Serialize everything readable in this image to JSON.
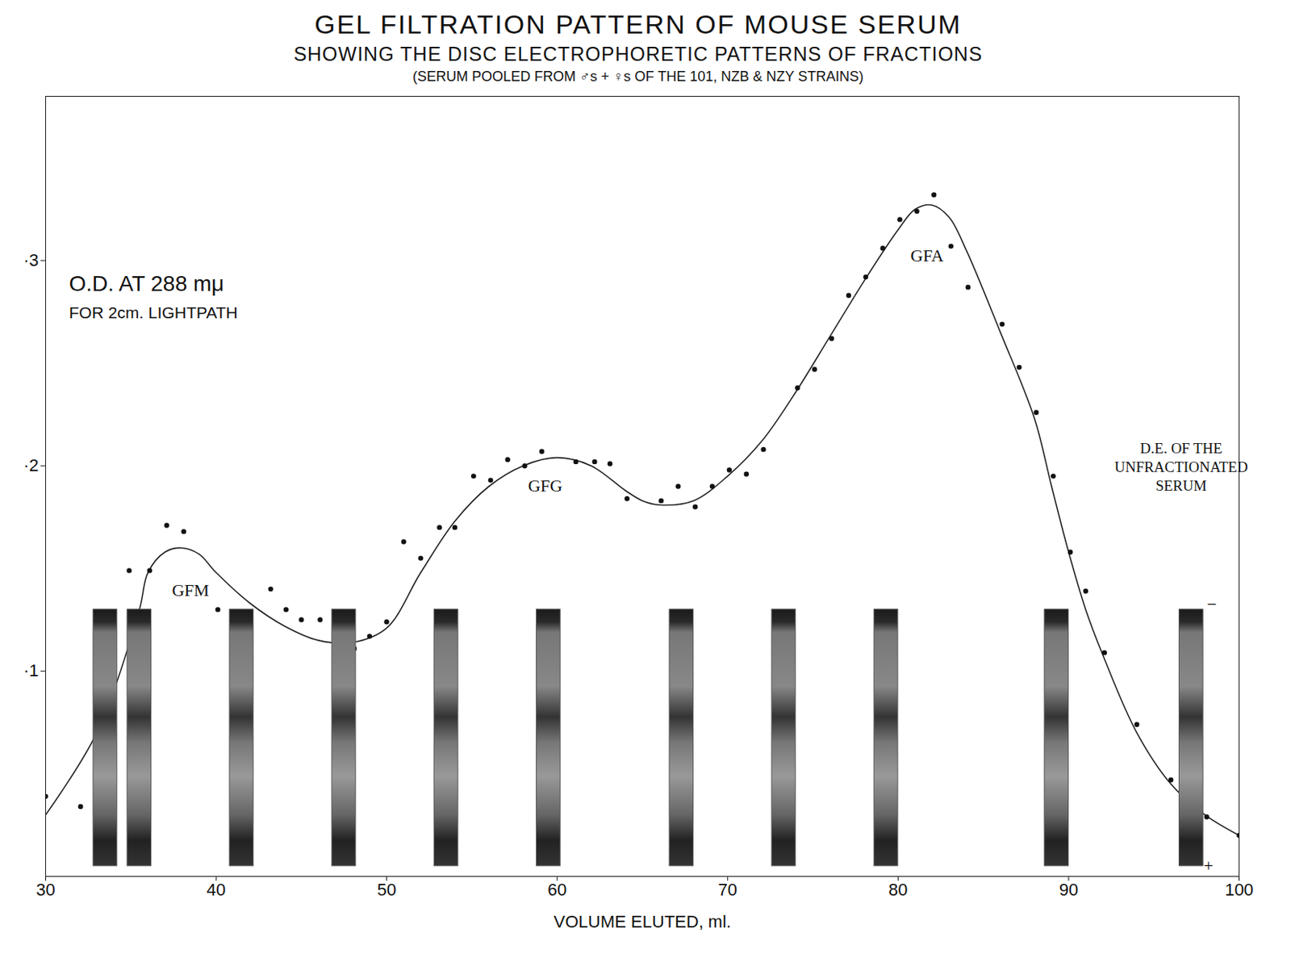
{
  "chart_data": {
    "type": "line",
    "title": "GEL FILTRATION PATTERN OF MOUSE SERUM",
    "subtitle": "SHOWING THE DISC ELECTROPHORETIC PATTERNS OF FRACTIONS",
    "caption": "(SERUM POOLED FROM ♂s + ♀s OF THE 101, NZB & NZY STRAINS)",
    "x_label": "VOLUME ELUTED, ml.",
    "y_label": [
      "O.D. AT 288 mμ",
      "FOR 2cm. LIGHTPATH"
    ],
    "xlim": [
      30,
      100
    ],
    "xticks": [
      30,
      40,
      50,
      60,
      70,
      80,
      90,
      100
    ],
    "ylim": [
      0,
      0.38
    ],
    "yticks": [
      {
        "value": 0.1,
        "label": "·1"
      },
      {
        "value": 0.2,
        "label": "·2"
      },
      {
        "value": 0.3,
        "label": "·3"
      }
    ],
    "grid": false,
    "series": [
      {
        "type": "line",
        "color": "#222222",
        "line_style": "solid",
        "x": [
          30,
          33,
          35.5,
          36,
          37,
          38,
          39,
          40,
          42,
          44,
          46,
          48,
          50,
          52,
          54,
          56,
          58,
          60,
          62,
          64,
          65,
          66,
          68,
          70,
          72,
          74,
          76,
          78,
          80,
          81,
          82,
          83,
          84,
          86,
          88,
          89,
          90,
          91,
          92,
          94,
          96,
          98,
          100
        ],
        "values": [
          0.03,
          0.07,
          0.13,
          0.148,
          0.158,
          0.16,
          0.157,
          0.148,
          0.133,
          0.122,
          0.115,
          0.114,
          0.121,
          0.148,
          0.173,
          0.19,
          0.2,
          0.204,
          0.2,
          0.188,
          0.183,
          0.181,
          0.183,
          0.195,
          0.212,
          0.236,
          0.263,
          0.29,
          0.315,
          0.325,
          0.327,
          0.321,
          0.305,
          0.265,
          0.223,
          0.19,
          0.158,
          0.13,
          0.108,
          0.07,
          0.045,
          0.03,
          0.02
        ]
      },
      {
        "type": "scatter",
        "color": "#111111",
        "marker": "circle",
        "x": [
          30,
          32.05,
          34.9,
          36.1,
          37.1,
          38.1,
          40.1,
          43.2,
          44.1,
          45.0,
          46.1,
          48.1,
          49.0,
          50.0,
          51.0,
          52.0,
          53.1,
          54.0,
          55.1,
          56.1,
          57.1,
          58.1,
          59.1,
          61.1,
          62.2,
          63.1,
          64.1,
          66.1,
          67.1,
          68.1,
          69.1,
          70.1,
          71.1,
          72.1,
          74.1,
          75.1,
          76.1,
          77.1,
          78.1,
          79.1,
          80.1,
          81.1,
          82.1,
          83.1,
          84.1,
          86.1,
          87.1,
          88.1,
          89.1,
          90.1,
          91.0,
          92.1,
          94.0,
          96.0,
          98.1,
          100
        ],
        "values": [
          0.039,
          0.034,
          0.149,
          0.149,
          0.171,
          0.168,
          0.13,
          0.14,
          0.13,
          0.125,
          0.125,
          0.111,
          0.117,
          0.124,
          0.163,
          0.155,
          0.17,
          0.17,
          0.195,
          0.193,
          0.203,
          0.2,
          0.207,
          0.202,
          0.202,
          0.201,
          0.184,
          0.183,
          0.19,
          0.18,
          0.19,
          0.198,
          0.196,
          0.208,
          0.238,
          0.247,
          0.262,
          0.283,
          0.292,
          0.306,
          0.32,
          0.324,
          0.332,
          0.307,
          0.287,
          0.269,
          0.248,
          0.226,
          0.195,
          0.158,
          0.139,
          0.109,
          0.074,
          0.047,
          0.029,
          0.02
        ]
      }
    ],
    "annotations": [
      {
        "text": "GFM",
        "x": 38.5,
        "y": 0.14
      },
      {
        "text": "GFG",
        "x": 59.3,
        "y": 0.191
      },
      {
        "text": "GFA",
        "x": 81.7,
        "y": 0.303
      },
      {
        "text": "D.E. OF THE\nUNFRACTIONATED\nSERUM",
        "x": 96.6,
        "y": 0.2
      },
      {
        "text": "−",
        "x": 98.4,
        "y": 0.133
      },
      {
        "text": "+",
        "x": 98.2,
        "y": 0.006
      }
    ],
    "strips": {
      "x": [
        33.5,
        35.5,
        41.5,
        47.5,
        53.5,
        59.5,
        67.3,
        73.3,
        79.3,
        89.3,
        97.2
      ],
      "width_ml": 1.4,
      "od_range": [
        0.005,
        0.13
      ]
    }
  }
}
